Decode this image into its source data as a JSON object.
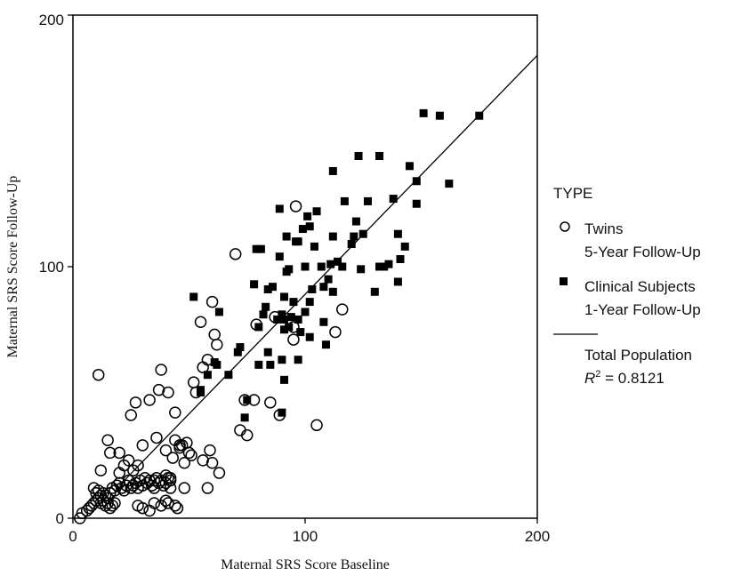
{
  "chart_data": {
    "type": "scatter",
    "xlabel": "Maternal SRS Score Baseline",
    "ylabel": "Maternal SRS Score Follow-Up",
    "xlim": [
      0,
      200
    ],
    "ylim": [
      0,
      200
    ],
    "xticks": [
      "0",
      "100",
      "200"
    ],
    "yticks": [
      "0",
      "100",
      "200"
    ],
    "grid": false,
    "legend": {
      "position": "right",
      "title": "TYPE",
      "entries": [
        {
          "key": "twins",
          "line1": "Twins",
          "line2": "5-Year Follow-Up"
        },
        {
          "key": "clinical",
          "line1": "Clinical Subjects",
          "line2": "1-Year Follow-Up"
        },
        {
          "key": "fit",
          "line1": "Total Population",
          "r2_label": "R",
          "r2_exp": "2",
          "r2_value": " = 0.8121"
        }
      ]
    },
    "fit_line": {
      "x": [
        20,
        200
      ],
      "y": [
        13,
        184
      ]
    },
    "series": [
      {
        "name": "Twins 5-Year Follow-Up",
        "marker": "open-circle",
        "points": [
          [
            3,
            0
          ],
          [
            4,
            2
          ],
          [
            6,
            3
          ],
          [
            7,
            4
          ],
          [
            8,
            5
          ],
          [
            9,
            6
          ],
          [
            10,
            7
          ],
          [
            11,
            8
          ],
          [
            12,
            6
          ],
          [
            13,
            7
          ],
          [
            14,
            5
          ],
          [
            15,
            6
          ],
          [
            16,
            4
          ],
          [
            17,
            5
          ],
          [
            18,
            6
          ],
          [
            9,
            12
          ],
          [
            10,
            10
          ],
          [
            11,
            11
          ],
          [
            12,
            9
          ],
          [
            13,
            10
          ],
          [
            14,
            9
          ],
          [
            15,
            8
          ],
          [
            16,
            10
          ],
          [
            17,
            12
          ],
          [
            18,
            11
          ],
          [
            19,
            13
          ],
          [
            20,
            14
          ],
          [
            21,
            12
          ],
          [
            22,
            11
          ],
          [
            23,
            13
          ],
          [
            24,
            15
          ],
          [
            25,
            12
          ],
          [
            26,
            13
          ],
          [
            27,
            14
          ],
          [
            28,
            12
          ],
          [
            29,
            15
          ],
          [
            30,
            13
          ],
          [
            31,
            16
          ],
          [
            32,
            14
          ],
          [
            33,
            15
          ],
          [
            34,
            13
          ],
          [
            35,
            15
          ],
          [
            36,
            16
          ],
          [
            37,
            14
          ],
          [
            38,
            15
          ],
          [
            39,
            13
          ],
          [
            40,
            14
          ],
          [
            41,
            16
          ],
          [
            42,
            15
          ],
          [
            28,
            5
          ],
          [
            30,
            4
          ],
          [
            33,
            3
          ],
          [
            35,
            6
          ],
          [
            38,
            5
          ],
          [
            40,
            7
          ],
          [
            41,
            6
          ],
          [
            44,
            5
          ],
          [
            45,
            4
          ],
          [
            48,
            12
          ],
          [
            48,
            22
          ],
          [
            50,
            26
          ],
          [
            47,
            29
          ],
          [
            49,
            30
          ],
          [
            51,
            25
          ],
          [
            46,
            28
          ],
          [
            43,
            24
          ],
          [
            44,
            31
          ],
          [
            46,
            29
          ],
          [
            40,
            27
          ],
          [
            36,
            32
          ],
          [
            30,
            29
          ],
          [
            20,
            26
          ],
          [
            16,
            26
          ],
          [
            15,
            31
          ],
          [
            12,
            19
          ],
          [
            20,
            18
          ],
          [
            22,
            21
          ],
          [
            26,
            19
          ],
          [
            28,
            21
          ],
          [
            24,
            23
          ],
          [
            25,
            41
          ],
          [
            27,
            46
          ],
          [
            33,
            47
          ],
          [
            37,
            51
          ],
          [
            38,
            59
          ],
          [
            41,
            50
          ],
          [
            44,
            42
          ],
          [
            40,
            17
          ],
          [
            42,
            16
          ],
          [
            42,
            12
          ],
          [
            35,
            12
          ],
          [
            56,
            23
          ],
          [
            58,
            12
          ],
          [
            60,
            22
          ],
          [
            59,
            27
          ],
          [
            63,
            18
          ],
          [
            52,
            54
          ],
          [
            53,
            50
          ],
          [
            55,
            78
          ],
          [
            56,
            60
          ],
          [
            58,
            63
          ],
          [
            60,
            86
          ],
          [
            61,
            73
          ],
          [
            62,
            69
          ],
          [
            72,
            35
          ],
          [
            74,
            47
          ],
          [
            78,
            47
          ],
          [
            75,
            33
          ],
          [
            70,
            105
          ],
          [
            79,
            77
          ],
          [
            85,
            46
          ],
          [
            87,
            80
          ],
          [
            89,
            41
          ],
          [
            95,
            71
          ],
          [
            95,
            76
          ],
          [
            105,
            37
          ],
          [
            113,
            74
          ],
          [
            116,
            83
          ],
          [
            96,
            124
          ],
          [
            11,
            57
          ]
        ]
      },
      {
        "name": "Clinical Subjects 1-Year Follow-Up",
        "marker": "filled-square",
        "points": [
          [
            52,
            88
          ],
          [
            55,
            50
          ],
          [
            55,
            51
          ],
          [
            58,
            57
          ],
          [
            61,
            62
          ],
          [
            62,
            61
          ],
          [
            63,
            82
          ],
          [
            67,
            57
          ],
          [
            71,
            66
          ],
          [
            72,
            68
          ],
          [
            74,
            40
          ],
          [
            75,
            47
          ],
          [
            78,
            93
          ],
          [
            79,
            107
          ],
          [
            81,
            107
          ],
          [
            80,
            76
          ],
          [
            80,
            61
          ],
          [
            82,
            81
          ],
          [
            83,
            84
          ],
          [
            84,
            91
          ],
          [
            84,
            66
          ],
          [
            85,
            61
          ],
          [
            86,
            92
          ],
          [
            88,
            79
          ],
          [
            89,
            123
          ],
          [
            89,
            104
          ],
          [
            90,
            81
          ],
          [
            90,
            63
          ],
          [
            90,
            42
          ],
          [
            91,
            79
          ],
          [
            91,
            55
          ],
          [
            91,
            75
          ],
          [
            91,
            88
          ],
          [
            92,
            112
          ],
          [
            93,
            99
          ],
          [
            92,
            98
          ],
          [
            93,
            76
          ],
          [
            94,
            80
          ],
          [
            95,
            86
          ],
          [
            96,
            110
          ],
          [
            97,
            79
          ],
          [
            97,
            63
          ],
          [
            97,
            110
          ],
          [
            98,
            74
          ],
          [
            99,
            115
          ],
          [
            100,
            82
          ],
          [
            100,
            100
          ],
          [
            101,
            120
          ],
          [
            102,
            72
          ],
          [
            102,
            86
          ],
          [
            102,
            116
          ],
          [
            103,
            91
          ],
          [
            104,
            108
          ],
          [
            105,
            122
          ],
          [
            107,
            100
          ],
          [
            108,
            92
          ],
          [
            108,
            78
          ],
          [
            109,
            69
          ],
          [
            110,
            95
          ],
          [
            111,
            101
          ],
          [
            112,
            138
          ],
          [
            112,
            90
          ],
          [
            112,
            112
          ],
          [
            114,
            102
          ],
          [
            116,
            100
          ],
          [
            117,
            126
          ],
          [
            120,
            109
          ],
          [
            121,
            112
          ],
          [
            122,
            118
          ],
          [
            123,
            144
          ],
          [
            124,
            99
          ],
          [
            125,
            113
          ],
          [
            127,
            126
          ],
          [
            130,
            90
          ],
          [
            132,
            100
          ],
          [
            132,
            144
          ],
          [
            134,
            100
          ],
          [
            136,
            101
          ],
          [
            138,
            127
          ],
          [
            140,
            94
          ],
          [
            140,
            113
          ],
          [
            141,
            103
          ],
          [
            143,
            108
          ],
          [
            145,
            140
          ],
          [
            148,
            134
          ],
          [
            148,
            125
          ],
          [
            151,
            161
          ],
          [
            158,
            160
          ],
          [
            162,
            133
          ],
          [
            175,
            160
          ]
        ]
      }
    ]
  }
}
